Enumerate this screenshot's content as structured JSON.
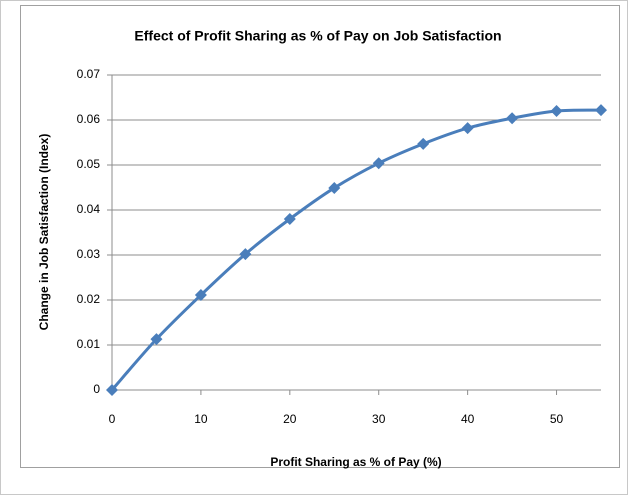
{
  "chart_data": {
    "type": "line",
    "title": "Effect of Profit Sharing as % of Pay on Job Satisfaction",
    "x_label": "Profit Sharing  as % of Pay (%)",
    "y_label": "Change in Job Satisfaction  (Index)",
    "x": [
      0,
      5,
      10,
      15,
      20,
      25,
      30,
      35,
      40,
      45,
      50,
      55
    ],
    "series": [
      {
        "name": "Job Satisfaction",
        "color": "#4a7ebb",
        "values": [
          0,
          0.0113,
          0.0211,
          0.0302,
          0.038,
          0.0449,
          0.0504,
          0.0547,
          0.0582,
          0.0604,
          0.062,
          0.0622
        ]
      }
    ],
    "xlim": [
      0,
      55
    ],
    "xticks": [
      0,
      10,
      20,
      30,
      40,
      50
    ],
    "ylim": [
      0,
      0.07
    ],
    "yticks": [
      0,
      0.01,
      0.02,
      0.03,
      0.04,
      0.05,
      0.06,
      0.07
    ],
    "grid": true
  }
}
